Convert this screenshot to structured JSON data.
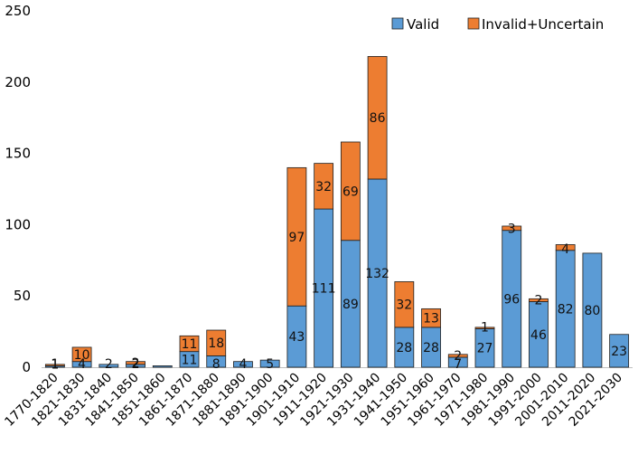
{
  "chart_data": {
    "type": "bar",
    "stacked": true,
    "title": "",
    "xlabel": "",
    "ylabel": "",
    "ylim": [
      0,
      250
    ],
    "yticks": [
      0,
      50,
      100,
      150,
      200,
      250
    ],
    "grid": false,
    "legend_position": "top-right",
    "colors": {
      "Valid": "#5b9bd5",
      "Invalid+Uncertain": "#ed7d31"
    },
    "categories": [
      "1770-1820",
      "1821-1830",
      "1831-1840",
      "1841-1850",
      "1851-1860",
      "1861-1870",
      "1871-1880",
      "1881-1890",
      "1891-1900",
      "1901-1910",
      "1911-1920",
      "1921-1930",
      "1931-1940",
      "1941-1950",
      "1951-1960",
      "1961-1970",
      "1971-1980",
      "1981-1990",
      "1991-2000",
      "2001-2010",
      "2011-2020",
      "2021-2030"
    ],
    "series": [
      {
        "name": "Valid",
        "values": [
          1,
          4,
          2,
          2,
          1,
          11,
          8,
          4,
          5,
          43,
          111,
          89,
          132,
          28,
          28,
          7,
          27,
          96,
          46,
          82,
          80,
          23
        ]
      },
      {
        "name": "Invalid+Uncertain",
        "values": [
          1,
          10,
          0,
          2,
          0,
          11,
          18,
          0,
          0,
          97,
          32,
          69,
          86,
          32,
          13,
          2,
          1,
          3,
          2,
          4,
          0,
          0
        ]
      }
    ],
    "data_labels": {
      "Valid": [
        "1",
        "4",
        "2",
        "2",
        "",
        "11",
        "8",
        "4",
        "5",
        "43",
        "111",
        "89",
        "132",
        "28",
        "28",
        "7",
        "27",
        "96",
        "46",
        "82",
        "80",
        "23"
      ],
      "Invalid+Uncertain": [
        "1",
        "10",
        "",
        "2",
        "",
        "11",
        "18",
        "",
        "",
        "97",
        "32",
        "69",
        "86",
        "32",
        "13",
        "2",
        "1",
        "3",
        "2",
        "4",
        "",
        ""
      ]
    }
  }
}
